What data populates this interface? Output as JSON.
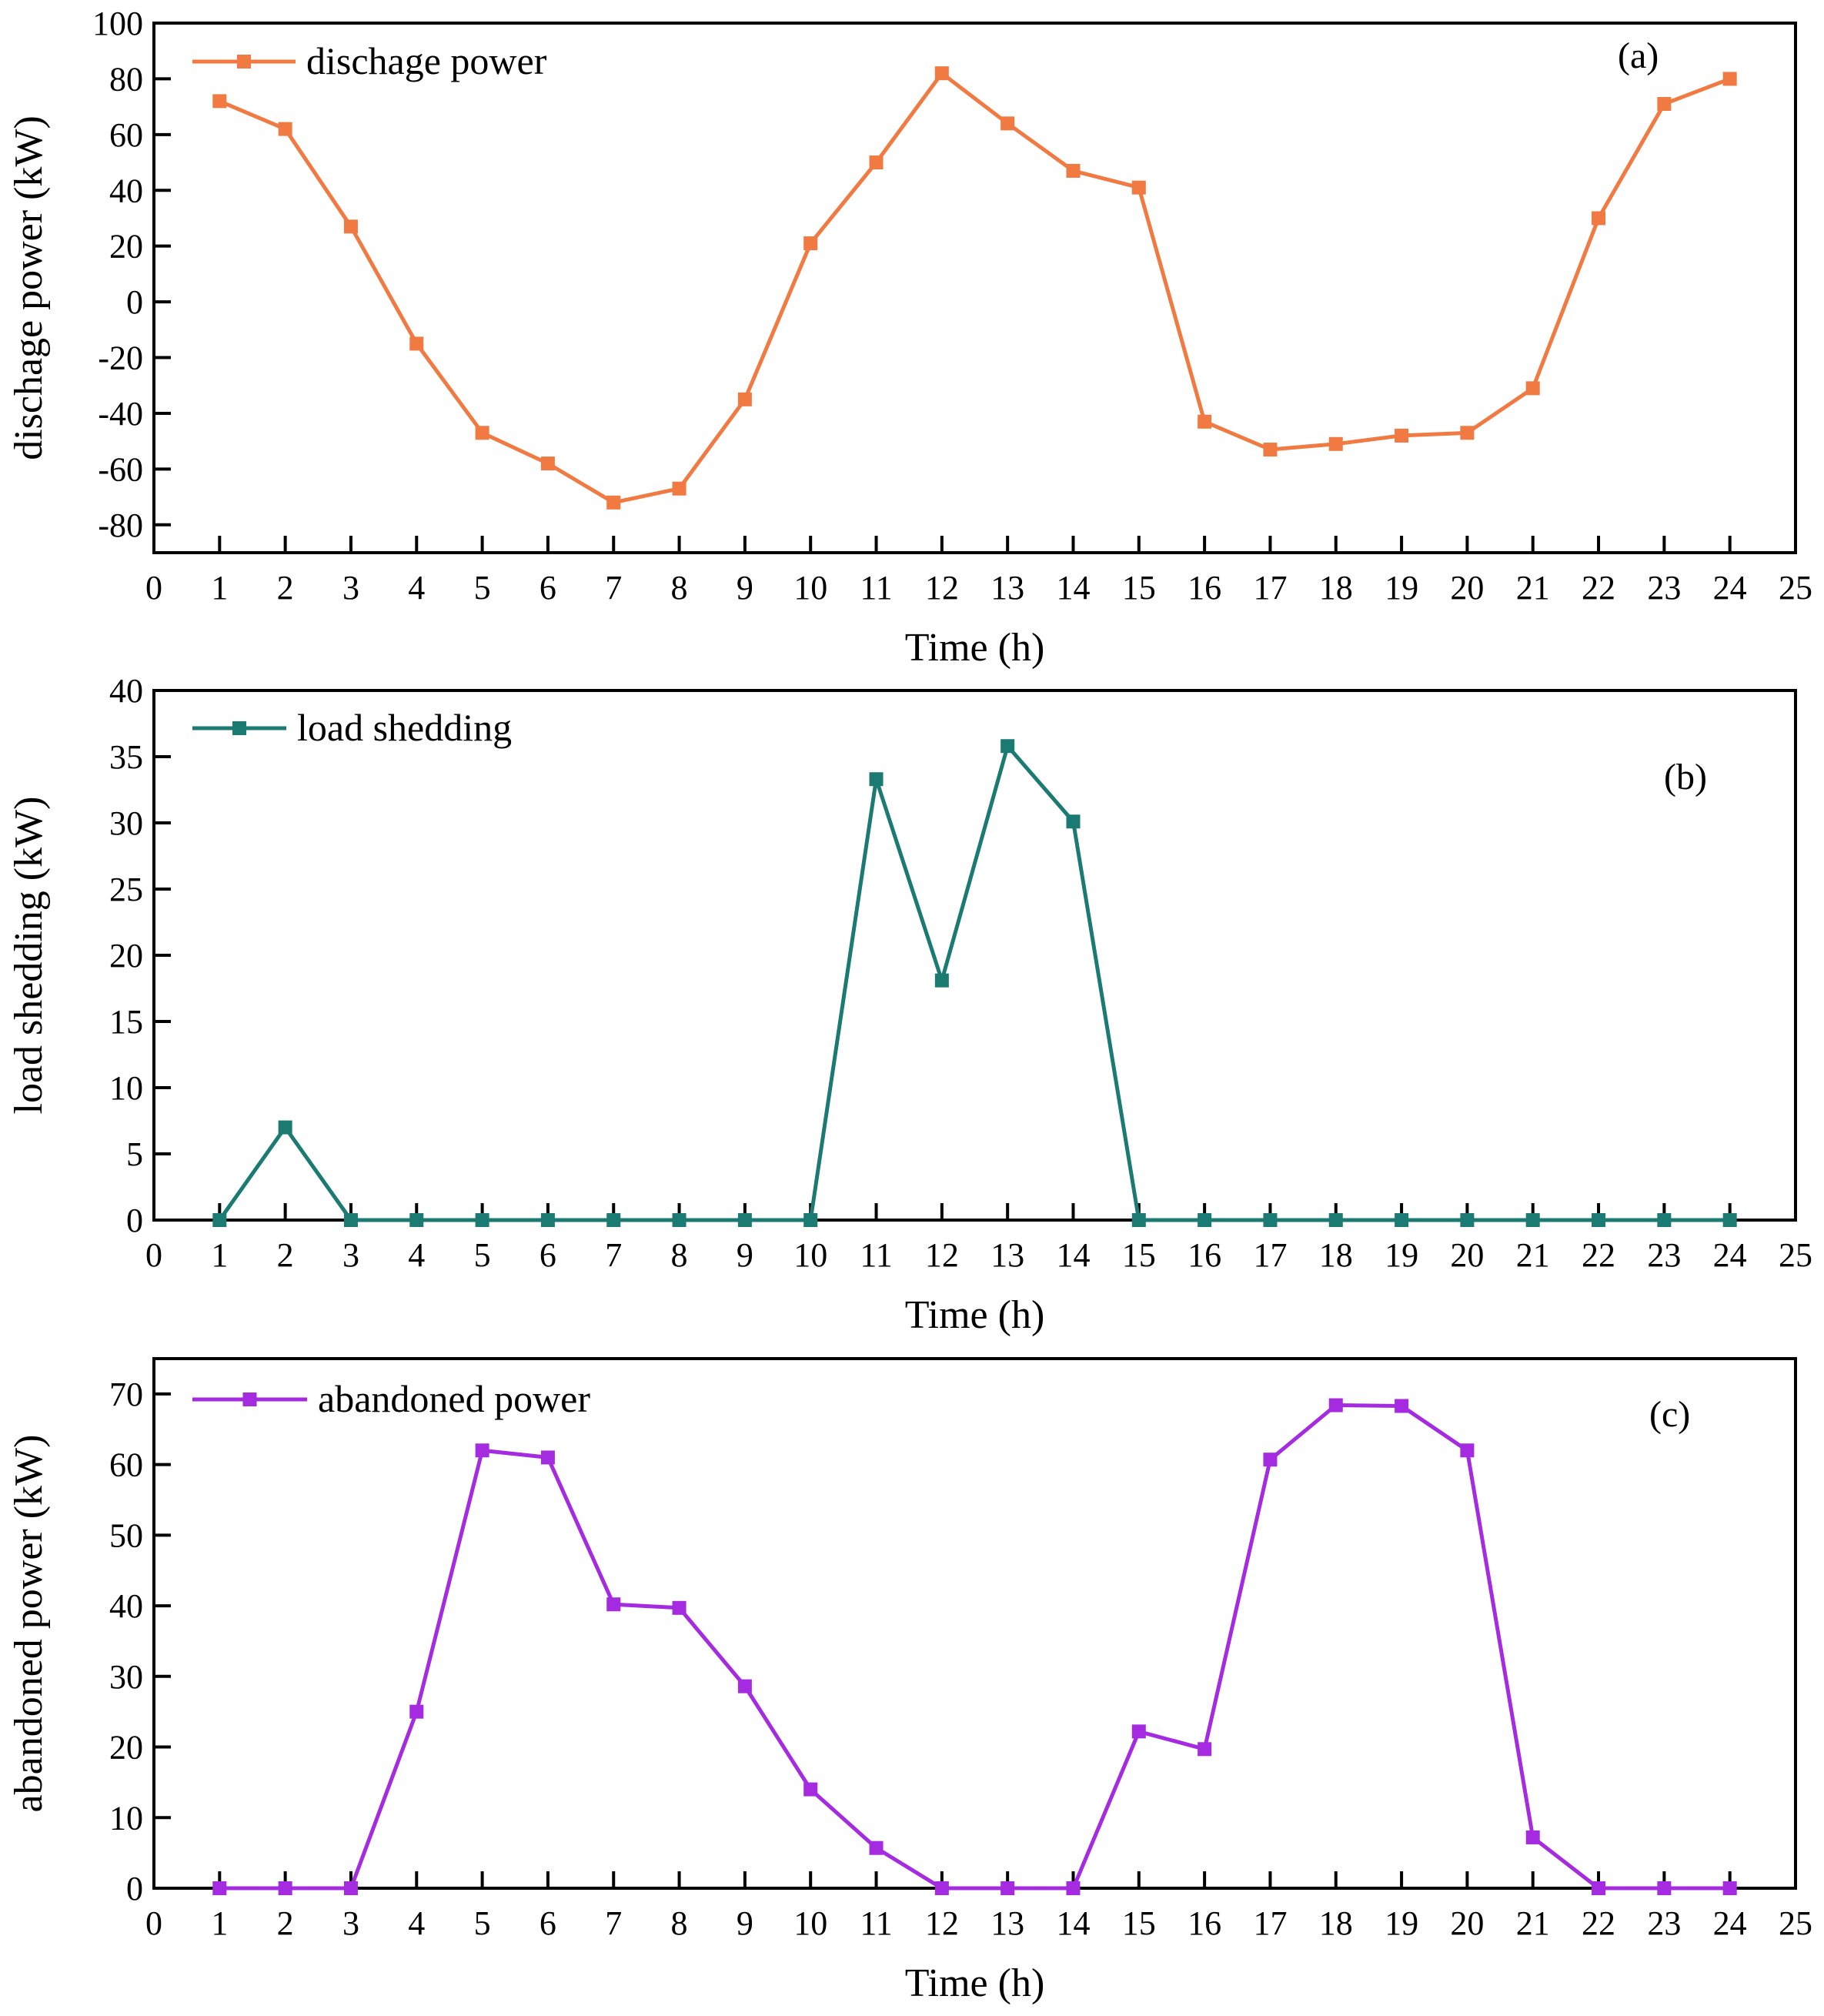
{
  "chart_data": [
    {
      "type": "line",
      "panel_tag": "(a)",
      "title": "",
      "xlabel": "Time (h)",
      "ylabel": "dischage power (kW)",
      "xlim": [
        0,
        25
      ],
      "ylim": [
        -90,
        100
      ],
      "xticks": [
        0,
        1,
        2,
        3,
        4,
        5,
        6,
        7,
        8,
        9,
        10,
        11,
        12,
        13,
        14,
        15,
        16,
        17,
        18,
        19,
        20,
        21,
        22,
        23,
        24,
        25
      ],
      "yticks": [
        -80,
        -60,
        -40,
        -20,
        0,
        20,
        40,
        60,
        80,
        100
      ],
      "grid": false,
      "legend_position": "top-left",
      "series": [
        {
          "name": "dischage power",
          "color": "#F07A42",
          "marker": "square",
          "x": [
            1,
            2,
            3,
            4,
            5,
            6,
            7,
            8,
            9,
            10,
            11,
            12,
            13,
            14,
            15,
            16,
            17,
            18,
            19,
            20,
            21,
            22,
            23,
            24
          ],
          "values": [
            72,
            62,
            27,
            -15,
            -47,
            -58,
            -72,
            -67,
            -35,
            21,
            50,
            82,
            64,
            47,
            41,
            -43,
            -53,
            -51,
            -48,
            -47,
            -31,
            30,
            71,
            80
          ]
        }
      ]
    },
    {
      "type": "line",
      "panel_tag": "(b)",
      "title": "",
      "xlabel": "Time (h)",
      "ylabel": "load shedding (kW)",
      "xlim": [
        0,
        25
      ],
      "ylim": [
        0,
        40
      ],
      "xticks": [
        0,
        1,
        2,
        3,
        4,
        5,
        6,
        7,
        8,
        9,
        10,
        11,
        12,
        13,
        14,
        15,
        16,
        17,
        18,
        19,
        20,
        21,
        22,
        23,
        24,
        25
      ],
      "yticks": [
        0,
        5,
        10,
        15,
        20,
        25,
        30,
        35,
        40
      ],
      "grid": false,
      "legend_position": "top-left",
      "series": [
        {
          "name": "load shedding",
          "color": "#1B7A72",
          "marker": "square",
          "x": [
            1,
            2,
            3,
            4,
            5,
            6,
            7,
            8,
            9,
            10,
            11,
            12,
            13,
            14,
            15,
            16,
            17,
            18,
            19,
            20,
            21,
            22,
            23,
            24
          ],
          "values": [
            0,
            7,
            0,
            0,
            0,
            0,
            0,
            0,
            0,
            0,
            33.3,
            18.1,
            35.8,
            30.1,
            0,
            0,
            0,
            0,
            0,
            0,
            0,
            0,
            0,
            0
          ]
        }
      ]
    },
    {
      "type": "line",
      "panel_tag": "(c)",
      "title": "",
      "xlabel": "Time (h)",
      "ylabel": "abandoned power (kW)",
      "xlim": [
        0,
        25
      ],
      "ylim": [
        0,
        75
      ],
      "xticks": [
        0,
        1,
        2,
        3,
        4,
        5,
        6,
        7,
        8,
        9,
        10,
        11,
        12,
        13,
        14,
        15,
        16,
        17,
        18,
        19,
        20,
        21,
        22,
        23,
        24,
        25
      ],
      "yticks": [
        0,
        10,
        20,
        30,
        40,
        50,
        60,
        70
      ],
      "grid": false,
      "legend_position": "top-left",
      "series": [
        {
          "name": "abandoned power",
          "color": "#A42BE0",
          "marker": "square",
          "x": [
            1,
            2,
            3,
            4,
            5,
            6,
            7,
            8,
            9,
            10,
            11,
            12,
            13,
            14,
            15,
            16,
            17,
            18,
            19,
            20,
            21,
            22,
            23,
            24
          ],
          "values": [
            0,
            0,
            0,
            25,
            62,
            61,
            40.2,
            39.7,
            28.6,
            14,
            5.7,
            0,
            0,
            0,
            22.2,
            19.7,
            60.7,
            68.4,
            68.3,
            62,
            7.2,
            0,
            0,
            0
          ]
        }
      ]
    }
  ]
}
